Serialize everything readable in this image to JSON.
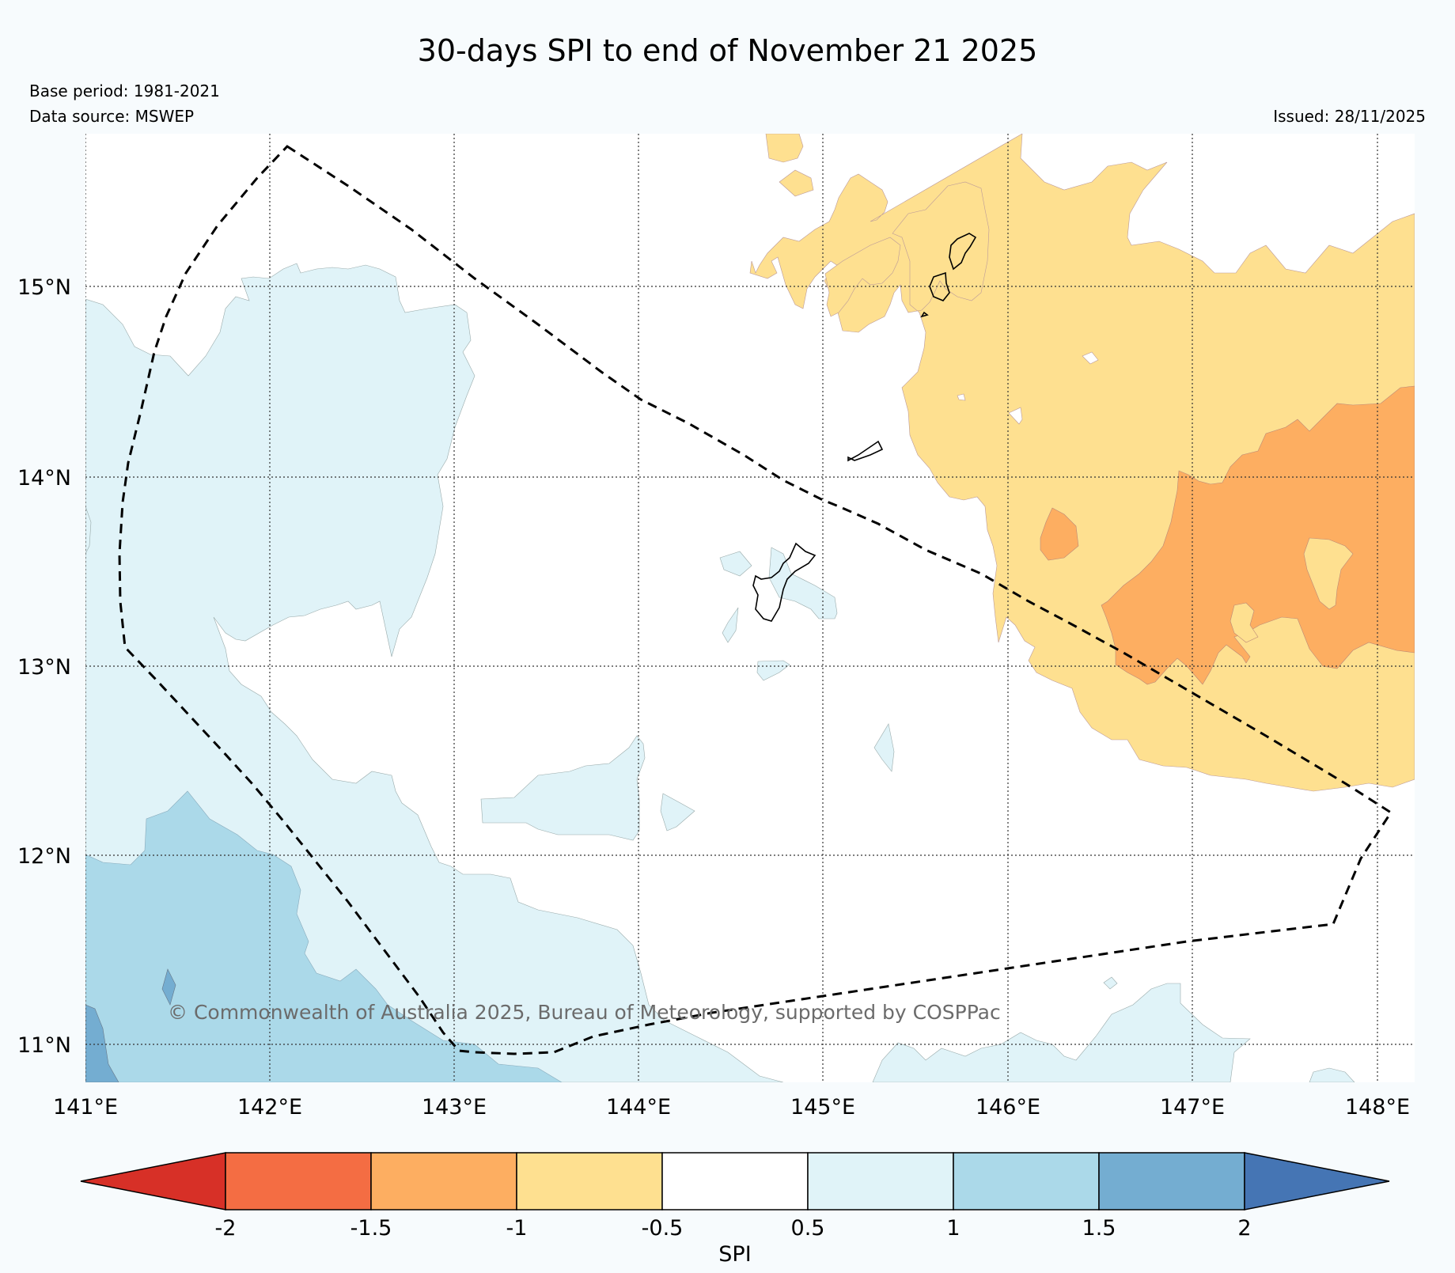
{
  "title": "30-days SPI to end of November 21 2025",
  "base_period": "Base period: 1981-2021",
  "data_source": "Data source: MSWEP",
  "issued": "Issued: 28/11/2025",
  "copyright": "© Commonwealth of Australia 2025, Bureau of Meteorology, supported by COSPPac",
  "map": {
    "lon_range": [
      141,
      148.2
    ],
    "lat_range": [
      10.8,
      15.8
    ],
    "lon_ticks": [
      141,
      142,
      143,
      144,
      145,
      146,
      147,
      148
    ],
    "lat_ticks": [
      11,
      12,
      13,
      14,
      15
    ],
    "lon_labels": [
      "141°E",
      "142°E",
      "143°E",
      "144°E",
      "145°E",
      "146°E",
      "147°E",
      "148°E"
    ],
    "lat_labels": [
      "11°N",
      "12°N",
      "13°N",
      "14°N",
      "15°N"
    ],
    "region": "Guam / Northern Mariana Islands",
    "boundary_style": "dashed EEZ outline"
  },
  "colorbar": {
    "label": "SPI",
    "tick_labels": [
      "-2",
      "-1.5",
      "-1",
      "-0.5",
      "0.5",
      "1",
      "1.5",
      "2"
    ],
    "bins": [
      {
        "range": "< -2",
        "color": "#d73027"
      },
      {
        "range": "-2 to -1.5",
        "color": "#f46d43"
      },
      {
        "range": "-1.5 to -1",
        "color": "#fdae61"
      },
      {
        "range": "-1 to -0.5",
        "color": "#fee090"
      },
      {
        "range": "-0.5 to 0.5",
        "color": "#ffffff"
      },
      {
        "range": "0.5 to 1",
        "color": "#e0f3f8"
      },
      {
        "range": "1 to 1.5",
        "color": "#abd9e9"
      },
      {
        "range": "1.5 to 2",
        "color": "#74add1"
      },
      {
        "range": "> 2",
        "color": "#4575b4"
      }
    ]
  }
}
